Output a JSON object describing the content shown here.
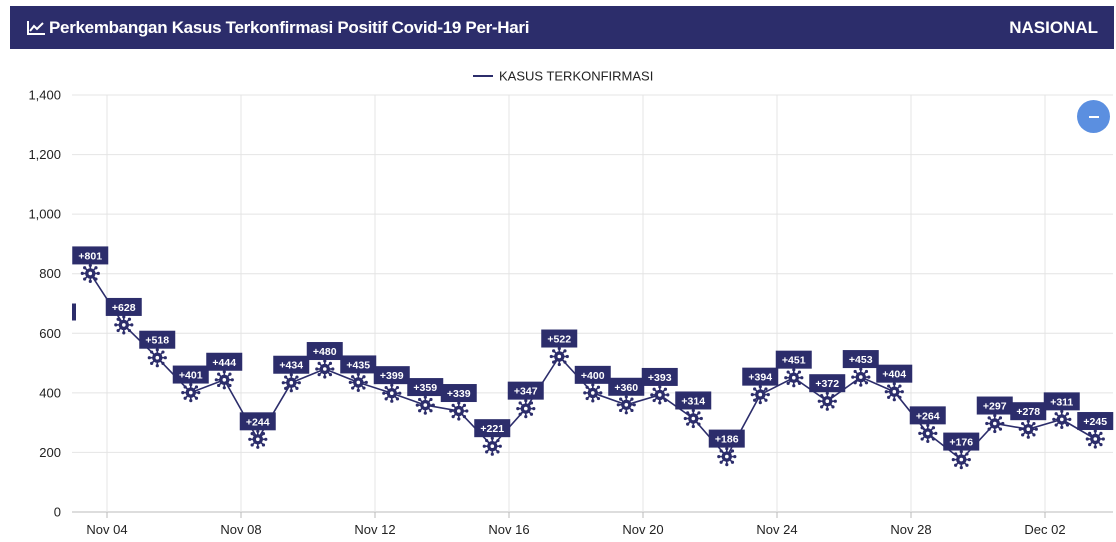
{
  "header": {
    "title": "Perkembangan Kasus Terkonfirmasi Positif Covid-19 Per-Hari",
    "region": "NASIONAL",
    "icon": "line-chart-icon"
  },
  "colors": {
    "header_bg": "#2c2d6b",
    "series": "#2c2d6b",
    "zoom_button": "#5b8fe0"
  },
  "zoom_button": {
    "icon": "minus-icon"
  },
  "chart_data": {
    "type": "line",
    "legend": "KASUS TERKONFIRMASI",
    "legend_position": "top-center",
    "grid": true,
    "ylim": [
      0,
      1400
    ],
    "y_ticks": [
      "0",
      "200",
      "400",
      "600",
      "800",
      "1,000",
      "1,200",
      "1,400"
    ],
    "x_ticks": [
      "Nov 04",
      "Nov 08",
      "Nov 12",
      "Nov 16",
      "Nov 20",
      "Nov 24",
      "Nov 28",
      "Dec 02"
    ],
    "x": [
      "Nov 03",
      "Nov 04",
      "Nov 05",
      "Nov 06",
      "Nov 07",
      "Nov 08",
      "Nov 09",
      "Nov 10",
      "Nov 11",
      "Nov 12",
      "Nov 13",
      "Nov 14",
      "Nov 15",
      "Nov 16",
      "Nov 17",
      "Nov 18",
      "Nov 19",
      "Nov 20",
      "Nov 21",
      "Nov 22",
      "Nov 23",
      "Nov 24",
      "Nov 25",
      "Nov 26",
      "Nov 27",
      "Nov 28",
      "Nov 29",
      "Nov 30",
      "Dec 01",
      "Dec 02",
      "Dec 03"
    ],
    "values": [
      801,
      628,
      518,
      401,
      444,
      244,
      434,
      480,
      435,
      399,
      359,
      339,
      221,
      347,
      522,
      400,
      360,
      393,
      314,
      186,
      394,
      451,
      372,
      453,
      404,
      264,
      176,
      297,
      278,
      311,
      245
    ],
    "labels": [
      "+801",
      "+628",
      "+518",
      "+401",
      "+444",
      "+244",
      "+434",
      "+480",
      "+435",
      "+399",
      "+359",
      "+339",
      "+221",
      "+347",
      "+522",
      "+400",
      "+360",
      "+393",
      "+314",
      "+186",
      "+394",
      "+451",
      "+372",
      "+453",
      "+404",
      "+264",
      "+176",
      "+297",
      "+278",
      "+311",
      "+245"
    ],
    "series_name": "KASUS TERKONFIRMASI"
  }
}
